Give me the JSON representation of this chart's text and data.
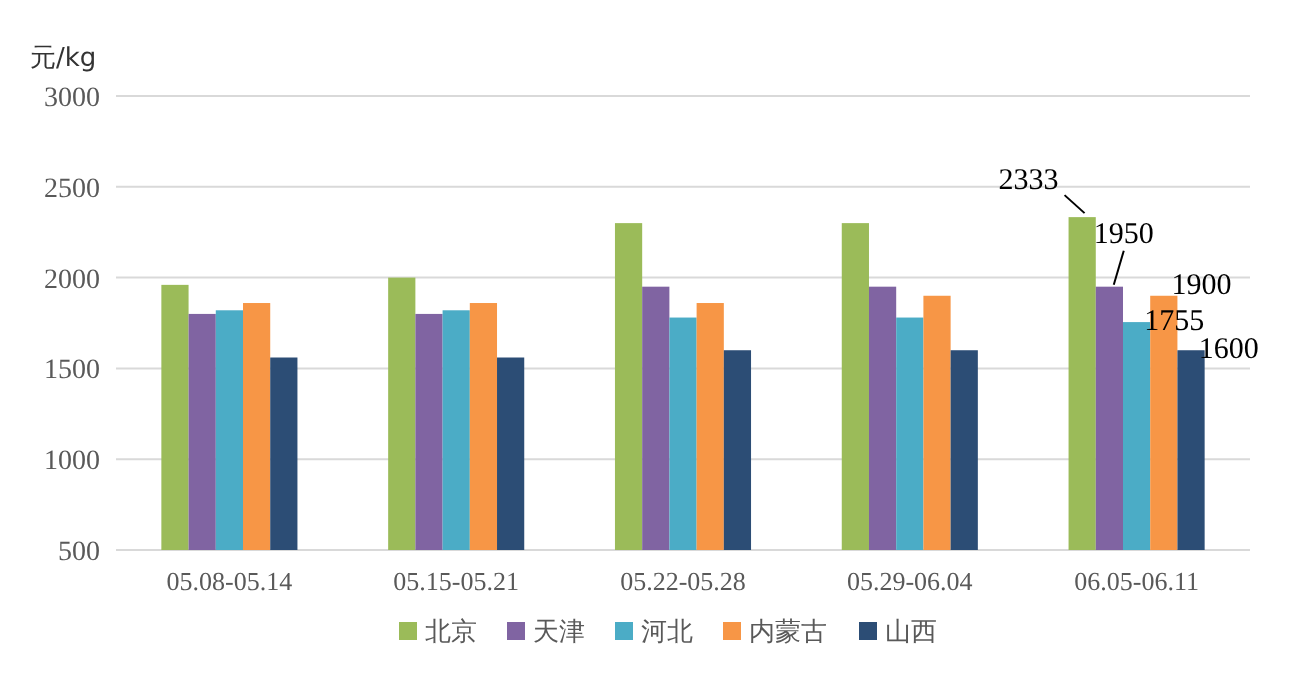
{
  "chart_data": {
    "type": "bar",
    "ylabel": "元/kg",
    "categories": [
      "05.08-05.14",
      "05.15-05.21",
      "05.22-05.28",
      "05.29-06.04",
      "06.05-06.11"
    ],
    "series": [
      {
        "name": "北京",
        "color": "#9bbb59",
        "values": [
          1960,
          2000,
          2300,
          2300,
          2333
        ],
        "value_labels": [
          null,
          null,
          null,
          null,
          "2333"
        ]
      },
      {
        "name": "天津",
        "color": "#8064a2",
        "values": [
          1800,
          1800,
          1950,
          1950,
          1950
        ],
        "value_labels": [
          null,
          null,
          null,
          null,
          "1950"
        ]
      },
      {
        "name": "河北",
        "color": "#4bacc6",
        "values": [
          1820,
          1820,
          1780,
          1780,
          1755
        ],
        "value_labels": [
          null,
          null,
          null,
          null,
          "1755"
        ]
      },
      {
        "name": "内蒙古",
        "color": "#f79646",
        "values": [
          1860,
          1860,
          1860,
          1900,
          1900
        ],
        "value_labels": [
          null,
          null,
          null,
          null,
          "1900"
        ]
      },
      {
        "name": "山西",
        "color": "#2c4d75",
        "values": [
          1560,
          1560,
          1600,
          1600,
          1600
        ],
        "value_labels": [
          null,
          null,
          null,
          null,
          "1600"
        ]
      }
    ],
    "ylim": [
      500,
      3000
    ],
    "yticks": [
      500,
      1000,
      1500,
      2000,
      2500,
      3000
    ],
    "grid": "y",
    "legend": "bottom"
  }
}
